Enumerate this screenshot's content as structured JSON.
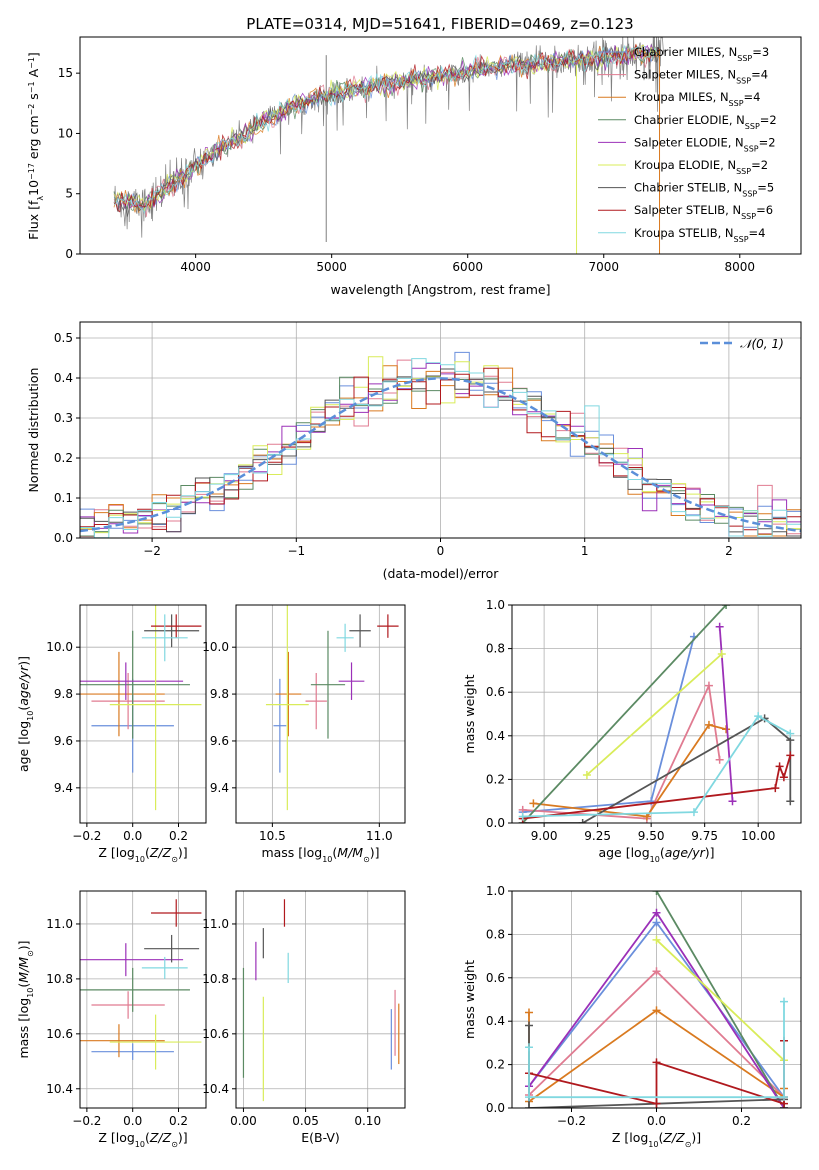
{
  "figure_title": "PLATE=0314, MJD=51641, FIBERID=0469, z=0.123",
  "colors": {
    "chabrier_miles": "#6a8fdc",
    "salpeter_miles": "#e07b91",
    "kroupa_miles": "#d97a20",
    "chabrier_elodie": "#5b8a63",
    "salpeter_elodie": "#9b30b8",
    "kroupa_elodie": "#d9ec5a",
    "chabrier_stelib": "#555555",
    "salpeter_stelib": "#b0191e",
    "kroupa_stelib": "#80d8e0",
    "spectrum": "#808080",
    "normal": "#5b8fd9",
    "grid": "#b0b0b0"
  },
  "chart_data": [
    {
      "id": "spectrum",
      "type": "line",
      "xlabel": "wavelength [Angstrom, rest frame]",
      "ylabel": "Flux [f_λ 10^-17 erg cm^-2 s^-1 A^-1]",
      "xlim": [
        3150,
        8450
      ],
      "ylim": [
        0,
        18
      ],
      "xticks": [
        4000,
        5000,
        6000,
        7000,
        8000
      ],
      "yticks": [
        0,
        5,
        10,
        15
      ],
      "grid": false,
      "legend_position": "upper-right",
      "legend": [
        {
          "label": "Chabrier MILES, N",
          "sub": "SSP",
          "tail": "=3",
          "color_key": "chabrier_miles"
        },
        {
          "label": "Salpeter MILES, N",
          "sub": "SSP",
          "tail": "=4",
          "color_key": "salpeter_miles"
        },
        {
          "label": "Kroupa MILES, N",
          "sub": "SSP",
          "tail": "=4",
          "color_key": "kroupa_miles"
        },
        {
          "label": "Chabrier ELODIE, N",
          "sub": "SSP",
          "tail": "=2",
          "color_key": "chabrier_elodie"
        },
        {
          "label": "Salpeter ELODIE, N",
          "sub": "SSP",
          "tail": "=2",
          "color_key": "salpeter_elodie"
        },
        {
          "label": "Kroupa ELODIE, N",
          "sub": "SSP",
          "tail": "=2",
          "color_key": "kroupa_elodie"
        },
        {
          "label": "Chabrier STELIB, N",
          "sub": "SSP",
          "tail": "=5",
          "color_key": "chabrier_stelib"
        },
        {
          "label": "Salpeter STELIB, N",
          "sub": "SSP",
          "tail": "=6",
          "color_key": "salpeter_stelib"
        },
        {
          "label": "Kroupa STELIB, N",
          "sub": "SSP",
          "tail": "=4",
          "color_key": "kroupa_stelib"
        }
      ],
      "continuum": {
        "x": [
          3400,
          3600,
          3800,
          3950,
          4100,
          4300,
          4500,
          4700,
          4900,
          5100,
          5300,
          5500,
          5700,
          5900,
          6100,
          6300,
          6500,
          6700,
          6900,
          7100,
          7300,
          7400
        ],
        "y": [
          4.5,
          4.0,
          5.5,
          6.8,
          8.2,
          9.5,
          11.0,
          12.2,
          13.0,
          13.5,
          14.0,
          14.3,
          14.6,
          15.0,
          15.3,
          15.6,
          15.8,
          16.0,
          16.2,
          16.4,
          16.6,
          16.7
        ]
      },
      "model_range": [
        3400,
        7450
      ],
      "spike_lines": [
        {
          "x": 4960,
          "y0": 1.0,
          "y1": 16.5
        },
        {
          "x": 6800,
          "y0": 0.0,
          "y1": 16.0
        },
        {
          "x": 7410,
          "y0": 0.0,
          "y1": 17.0
        }
      ]
    },
    {
      "id": "residuals",
      "type": "histogram",
      "xlabel": "(data-model)/error",
      "ylabel": "Normed distribution",
      "xlim": [
        -2.5,
        2.5
      ],
      "ylim": [
        0,
        0.54
      ],
      "xticks": [
        -2,
        -1,
        0,
        1,
        2
      ],
      "yticks": [
        0.0,
        0.1,
        0.2,
        0.3,
        0.4,
        0.5
      ],
      "grid": true,
      "legend_position": "upper-right",
      "legend": [
        "𝒩(0, 1)"
      ],
      "bin_width": 0.1
    },
    {
      "id": "age_Z",
      "type": "scatter",
      "xlabel": "Z [log10(Z/Z☉)]",
      "ylabel": "age [log10(age/yr)]",
      "xlim": [
        -0.23,
        0.32
      ],
      "ylim": [
        9.25,
        10.18
      ],
      "xticks": [
        -0.2,
        0.0,
        0.2
      ],
      "yticks": [
        9.4,
        9.6,
        9.8,
        10.0
      ],
      "grid": true,
      "points": [
        {
          "s": "chabrier_miles",
          "x": 0.0,
          "y": 9.665,
          "xerr": 0.18,
          "yerr": 0.2
        },
        {
          "s": "salpeter_miles",
          "x": -0.02,
          "y": 9.77,
          "xerr": 0.16,
          "yerr": 0.12
        },
        {
          "s": "kroupa_miles",
          "x": -0.06,
          "y": 9.8,
          "xerr": 0.2,
          "yerr": 0.18
        },
        {
          "s": "chabrier_elodie",
          "x": 0.0,
          "y": 9.84,
          "xerr": 0.25,
          "yerr": 0.23
        },
        {
          "s": "salpeter_elodie",
          "x": -0.03,
          "y": 9.855,
          "xerr": 0.25,
          "yerr": 0.08
        },
        {
          "s": "kroupa_elodie",
          "x": 0.1,
          "y": 9.755,
          "xerr": 0.2,
          "yerr": 0.45
        },
        {
          "s": "chabrier_stelib",
          "x": 0.17,
          "y": 10.07,
          "xerr": 0.12,
          "yerr": 0.07
        },
        {
          "s": "salpeter_stelib",
          "x": 0.19,
          "y": 10.09,
          "xerr": 0.11,
          "yerr": 0.05
        },
        {
          "s": "kroupa_stelib",
          "x": 0.14,
          "y": 10.04,
          "xerr": 0.1,
          "yerr": 0.1
        }
      ]
    },
    {
      "id": "age_mass",
      "type": "scatter",
      "xlabel": "mass [log10(M/M☉)]",
      "ylabel": "",
      "xlim": [
        10.33,
        11.12
      ],
      "ylim": [
        9.25,
        10.18
      ],
      "xticks": [
        10.5,
        11.0
      ],
      "yticks": [
        9.4,
        9.6,
        9.8,
        10.0
      ],
      "grid": true,
      "points": [
        {
          "s": "chabrier_miles",
          "x": 10.535,
          "y": 9.665,
          "xerr": 0.03,
          "yerr": 0.2
        },
        {
          "s": "salpeter_miles",
          "x": 10.705,
          "y": 9.77,
          "xerr": 0.05,
          "yerr": 0.12
        },
        {
          "s": "kroupa_miles",
          "x": 10.575,
          "y": 9.8,
          "xerr": 0.06,
          "yerr": 0.18
        },
        {
          "s": "chabrier_elodie",
          "x": 10.76,
          "y": 9.84,
          "xerr": 0.08,
          "yerr": 0.23
        },
        {
          "s": "salpeter_elodie",
          "x": 10.87,
          "y": 9.855,
          "xerr": 0.06,
          "yerr": 0.08
        },
        {
          "s": "kroupa_elodie",
          "x": 10.57,
          "y": 9.755,
          "xerr": 0.1,
          "yerr": 0.45
        },
        {
          "s": "chabrier_stelib",
          "x": 10.91,
          "y": 10.07,
          "xerr": 0.05,
          "yerr": 0.07
        },
        {
          "s": "salpeter_stelib",
          "x": 11.04,
          "y": 10.09,
          "xerr": 0.05,
          "yerr": 0.05
        },
        {
          "s": "kroupa_stelib",
          "x": 10.84,
          "y": 10.04,
          "xerr": 0.04,
          "yerr": 0.06
        }
      ]
    },
    {
      "id": "weight_age",
      "type": "line",
      "xlabel": "age [log10(age/yr)]",
      "ylabel": "mass weight",
      "xlim": [
        8.85,
        10.2
      ],
      "ylim": [
        0,
        1
      ],
      "xticks": [
        9.0,
        9.25,
        9.5,
        9.75,
        10.0
      ],
      "yticks": [
        0.0,
        0.2,
        0.4,
        0.6,
        0.8,
        1.0
      ],
      "grid": true,
      "series": [
        {
          "s": "chabrier_miles",
          "x": [
            8.9,
            9.5,
            9.7
          ],
          "y": [
            0.05,
            0.1,
            0.855
          ]
        },
        {
          "s": "salpeter_miles",
          "x": [
            8.9,
            9.48,
            9.77,
            9.82
          ],
          "y": [
            0.06,
            0.02,
            0.63,
            0.29
          ]
        },
        {
          "s": "kroupa_miles",
          "x": [
            8.95,
            9.48,
            9.77,
            9.85
          ],
          "y": [
            0.09,
            0.03,
            0.45,
            0.43
          ]
        },
        {
          "s": "chabrier_elodie",
          "x": [
            8.9,
            9.85
          ],
          "y": [
            0.0,
            1.0
          ]
        },
        {
          "s": "salpeter_elodie",
          "x": [
            9.82,
            9.88
          ],
          "y": [
            0.9,
            0.1
          ]
        },
        {
          "s": "kroupa_elodie",
          "x": [
            9.2,
            9.83
          ],
          "y": [
            0.22,
            0.775
          ]
        },
        {
          "s": "chabrier_stelib",
          "x": [
            8.9,
            9.18,
            10.03,
            10.15,
            10.15
          ],
          "y": [
            0.0,
            0.0,
            0.48,
            0.38,
            0.1
          ]
        },
        {
          "s": "salpeter_stelib",
          "x": [
            8.9,
            10.08,
            10.1,
            10.12,
            10.15
          ],
          "y": [
            0.02,
            0.16,
            0.26,
            0.21,
            0.31
          ]
        },
        {
          "s": "kroupa_stelib",
          "x": [
            8.9,
            9.7,
            10.0,
            10.15
          ],
          "y": [
            0.03,
            0.05,
            0.49,
            0.41
          ]
        }
      ]
    },
    {
      "id": "mass_Z",
      "type": "scatter",
      "xlabel": "Z [log10(Z/Z☉)]",
      "ylabel": "mass [log10(M/M☉)]",
      "xlim": [
        -0.23,
        0.32
      ],
      "ylim": [
        10.33,
        11.12
      ],
      "xticks": [
        -0.2,
        0.0,
        0.2
      ],
      "yticks": [
        10.4,
        10.6,
        10.8,
        11.0
      ],
      "grid": true,
      "points": [
        {
          "s": "chabrier_miles",
          "x": 0.0,
          "y": 10.535,
          "xerr": 0.18,
          "yerr": 0.03
        },
        {
          "s": "salpeter_miles",
          "x": -0.02,
          "y": 10.705,
          "xerr": 0.16,
          "yerr": 0.05
        },
        {
          "s": "kroupa_miles",
          "x": -0.06,
          "y": 10.575,
          "xerr": 0.2,
          "yerr": 0.06
        },
        {
          "s": "chabrier_elodie",
          "x": 0.0,
          "y": 10.76,
          "xerr": 0.25,
          "yerr": 0.08
        },
        {
          "s": "salpeter_elodie",
          "x": -0.03,
          "y": 10.87,
          "xerr": 0.25,
          "yerr": 0.06
        },
        {
          "s": "kroupa_elodie",
          "x": 0.1,
          "y": 10.57,
          "xerr": 0.2,
          "yerr": 0.1
        },
        {
          "s": "chabrier_stelib",
          "x": 0.17,
          "y": 10.91,
          "xerr": 0.12,
          "yerr": 0.05
        },
        {
          "s": "salpeter_stelib",
          "x": 0.19,
          "y": 11.04,
          "xerr": 0.11,
          "yerr": 0.05
        },
        {
          "s": "kroupa_stelib",
          "x": 0.14,
          "y": 10.84,
          "xerr": 0.1,
          "yerr": 0.04
        }
      ]
    },
    {
      "id": "mass_ebv",
      "type": "scatter",
      "xlabel": "E(B-V)",
      "ylabel": "",
      "xlim": [
        -0.006,
        0.13
      ],
      "ylim": [
        10.33,
        11.12
      ],
      "xticks": [
        0.0,
        0.05,
        0.1
      ],
      "yticks": [
        10.4,
        10.6,
        10.8,
        11.0
      ],
      "grid": true,
      "points": [
        {
          "s": "chabrier_miles",
          "x": 0.119,
          "y": 10.58,
          "xerr": 0.0,
          "yerr": 0.11
        },
        {
          "s": "salpeter_miles",
          "x": 0.122,
          "y": 10.64,
          "xerr": 0.0,
          "yerr": 0.12
        },
        {
          "s": "kroupa_miles",
          "x": 0.125,
          "y": 10.6,
          "xerr": 0.0,
          "yerr": 0.11
        },
        {
          "s": "chabrier_elodie",
          "x": 0.0,
          "y": 10.64,
          "xerr": 0.0,
          "yerr": 0.2
        },
        {
          "s": "salpeter_elodie",
          "x": 0.01,
          "y": 10.865,
          "xerr": 0.0,
          "yerr": 0.07
        },
        {
          "s": "kroupa_elodie",
          "x": 0.016,
          "y": 10.545,
          "xerr": 0.0,
          "yerr": 0.19
        },
        {
          "s": "chabrier_stelib",
          "x": 0.016,
          "y": 10.93,
          "xerr": 0.0,
          "yerr": 0.055
        },
        {
          "s": "salpeter_stelib",
          "x": 0.033,
          "y": 11.04,
          "xerr": 0.0,
          "yerr": 0.05
        },
        {
          "s": "kroupa_stelib",
          "x": 0.036,
          "y": 10.84,
          "xerr": 0.0,
          "yerr": 0.055
        }
      ]
    },
    {
      "id": "weight_Z",
      "type": "line",
      "xlabel": "Z [log10(Z/Z☉)]",
      "ylabel": "mass weight",
      "xlim": [
        -0.34,
        0.34
      ],
      "ylim": [
        0,
        1
      ],
      "xticks": [
        -0.2,
        0.0,
        0.2
      ],
      "yticks": [
        0.0,
        0.2,
        0.4,
        0.6,
        0.8,
        1.0
      ],
      "grid": true,
      "series": [
        {
          "s": "chabrier_miles",
          "x": [
            -0.3,
            0.0,
            0.3
          ],
          "y": [
            0.1,
            0.855,
            0.05
          ]
        },
        {
          "s": "salpeter_miles",
          "x": [
            -0.3,
            0.0,
            0.3
          ],
          "y": [
            0.06,
            0.63,
            0.05
          ]
        },
        {
          "s": "kroupa_miles",
          "x": [
            -0.3,
            -0.3,
            0.0,
            0.3,
            0.3
          ],
          "y": [
            0.44,
            0.03,
            0.45,
            0.05,
            0.09
          ]
        },
        {
          "s": "chabrier_elodie",
          "x": [
            0.0,
            0.3
          ],
          "y": [
            1.0,
            0.0
          ]
        },
        {
          "s": "salpeter_elodie",
          "x": [
            -0.3,
            0.0,
            0.3
          ],
          "y": [
            0.1,
            0.9,
            0.0
          ]
        },
        {
          "s": "kroupa_elodie",
          "x": [
            0.0,
            0.3
          ],
          "y": [
            0.775,
            0.22
          ]
        },
        {
          "s": "chabrier_stelib",
          "x": [
            -0.3,
            -0.3,
            0.0,
            0.3,
            0.3
          ],
          "y": [
            0.38,
            0.0,
            0.02,
            0.04,
            0.0
          ]
        },
        {
          "s": "salpeter_stelib",
          "x": [
            -0.3,
            0.0,
            0.0,
            0.3,
            0.3
          ],
          "y": [
            0.16,
            0.02,
            0.21,
            0.02,
            0.31
          ]
        },
        {
          "s": "kroupa_stelib",
          "x": [
            -0.3,
            -0.3,
            0.3,
            0.3
          ],
          "y": [
            0.28,
            0.05,
            0.05,
            0.49
          ]
        }
      ]
    }
  ]
}
